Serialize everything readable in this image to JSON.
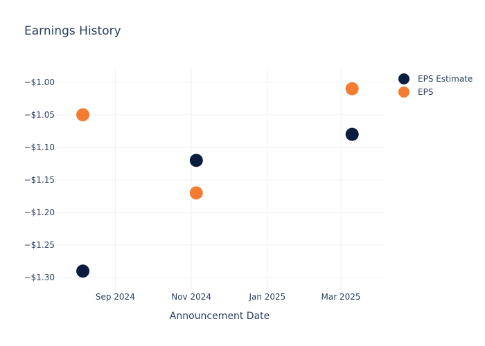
{
  "chart_data": {
    "type": "scatter",
    "title": "Earnings History",
    "xlabel": "Announcement Date",
    "ylabel": "",
    "x_ticks": [
      "Sep 2024",
      "Nov 2024",
      "Jan 2025",
      "Mar 2025"
    ],
    "y_ticks": [
      "−$1.00",
      "−$1.05",
      "−$1.10",
      "−$1.15",
      "−$1.20",
      "−$1.25",
      "−$1.30"
    ],
    "y_tick_values": [
      -1.0,
      -1.05,
      -1.1,
      -1.15,
      -1.2,
      -1.25,
      -1.3
    ],
    "x_tick_dates": [
      "2024-09-01",
      "2024-11-01",
      "2025-01-01",
      "2025-03-01"
    ],
    "xlim": [
      "2024-07-15",
      "2025-04-05"
    ],
    "ylim": [
      -1.32,
      -0.98
    ],
    "grid": true,
    "legend_position": "top-right",
    "series": [
      {
        "name": "EPS Estimate",
        "color": "#0b1d3f",
        "points": [
          {
            "x": "2024-08-06",
            "y": -1.29
          },
          {
            "x": "2024-11-05",
            "y": -1.12
          },
          {
            "x": "2025-03-10",
            "y": -1.08
          }
        ]
      },
      {
        "name": "EPS",
        "color": "#f47c30",
        "points": [
          {
            "x": "2024-08-06",
            "y": -1.05
          },
          {
            "x": "2024-11-05",
            "y": -1.17
          },
          {
            "x": "2025-03-10",
            "y": -1.01
          }
        ]
      }
    ]
  }
}
